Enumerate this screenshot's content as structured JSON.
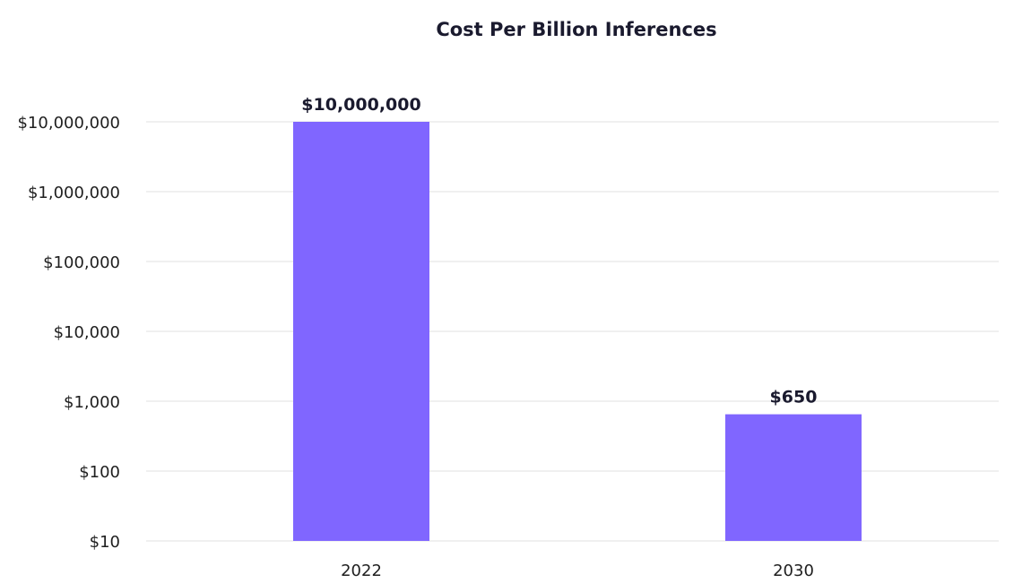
{
  "chart_data": {
    "type": "bar",
    "title": "Cost Per Billion Inferences",
    "categories": [
      "2022",
      "2030"
    ],
    "values": [
      10000000,
      650
    ],
    "data_labels": [
      "$10,000,000",
      "$650"
    ],
    "y_scale": "log",
    "ylim": [
      10,
      10000000
    ],
    "y_ticks": [
      10,
      100,
      1000,
      10000,
      100000,
      1000000,
      10000000
    ],
    "y_tick_labels": [
      "$10",
      "$100",
      "$1,000",
      "$10,000",
      "$100,000",
      "$1,000,000",
      "$10,000,000"
    ],
    "grid": true,
    "bar_color": "#8066ff",
    "xlabel": "",
    "ylabel": ""
  }
}
